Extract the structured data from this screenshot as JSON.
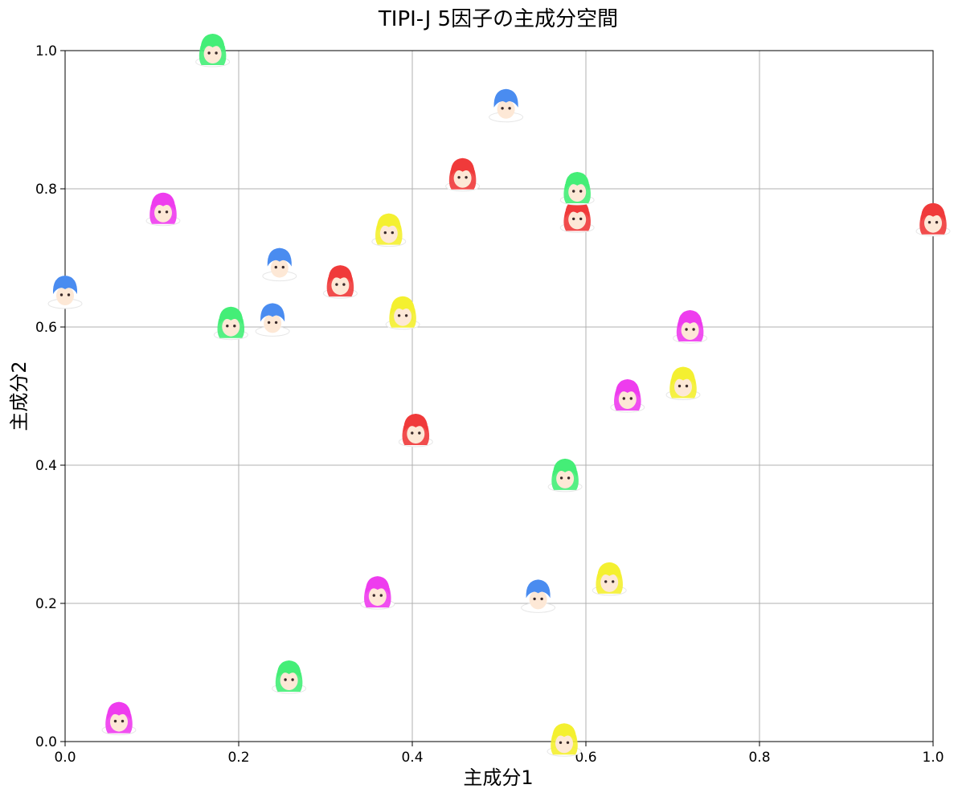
{
  "chart_data": {
    "type": "scatter",
    "title": "TIPI-J 5因子の主成分空間",
    "xlabel": "主成分1",
    "ylabel": "主成分2",
    "xlim": [
      0,
      1
    ],
    "ylim": [
      0,
      1
    ],
    "x_ticks": [
      "0.0",
      "0.2",
      "0.4",
      "0.6",
      "0.8",
      "1.0"
    ],
    "y_ticks": [
      "0.0",
      "0.2",
      "0.4",
      "0.6",
      "0.8",
      "1.0"
    ],
    "grid": true,
    "marker": "avatar-face-icon",
    "series": [
      {
        "color": "#4a8cf0",
        "hair": "short",
        "points": [
          [
            0.508,
            0.92
          ],
          [
            0.0,
            0.65
          ],
          [
            0.247,
            0.69
          ],
          [
            0.239,
            0.61
          ],
          [
            0.545,
            0.21
          ]
        ]
      },
      {
        "color": "#f03a3a",
        "hair": "long",
        "points": [
          [
            0.458,
            0.82
          ],
          [
            0.59,
            0.76
          ],
          [
            1.0,
            0.755
          ],
          [
            0.317,
            0.665
          ],
          [
            0.404,
            0.45
          ]
        ]
      },
      {
        "color": "#44ee77",
        "hair": "long",
        "points": [
          [
            0.17,
            1.0
          ],
          [
            0.59,
            0.8
          ],
          [
            0.191,
            0.605
          ],
          [
            0.576,
            0.385
          ],
          [
            0.258,
            0.093
          ]
        ]
      },
      {
        "color": "#ee3cee",
        "hair": "long",
        "points": [
          [
            0.113,
            0.77
          ],
          [
            0.72,
            0.6
          ],
          [
            0.648,
            0.5
          ],
          [
            0.36,
            0.215
          ],
          [
            0.062,
            0.033
          ]
        ]
      },
      {
        "color": "#f4f030",
        "hair": "long",
        "points": [
          [
            0.373,
            0.74
          ],
          [
            0.389,
            0.62
          ],
          [
            0.712,
            0.518
          ],
          [
            0.627,
            0.235
          ],
          [
            0.575,
            0.002
          ]
        ]
      }
    ]
  }
}
